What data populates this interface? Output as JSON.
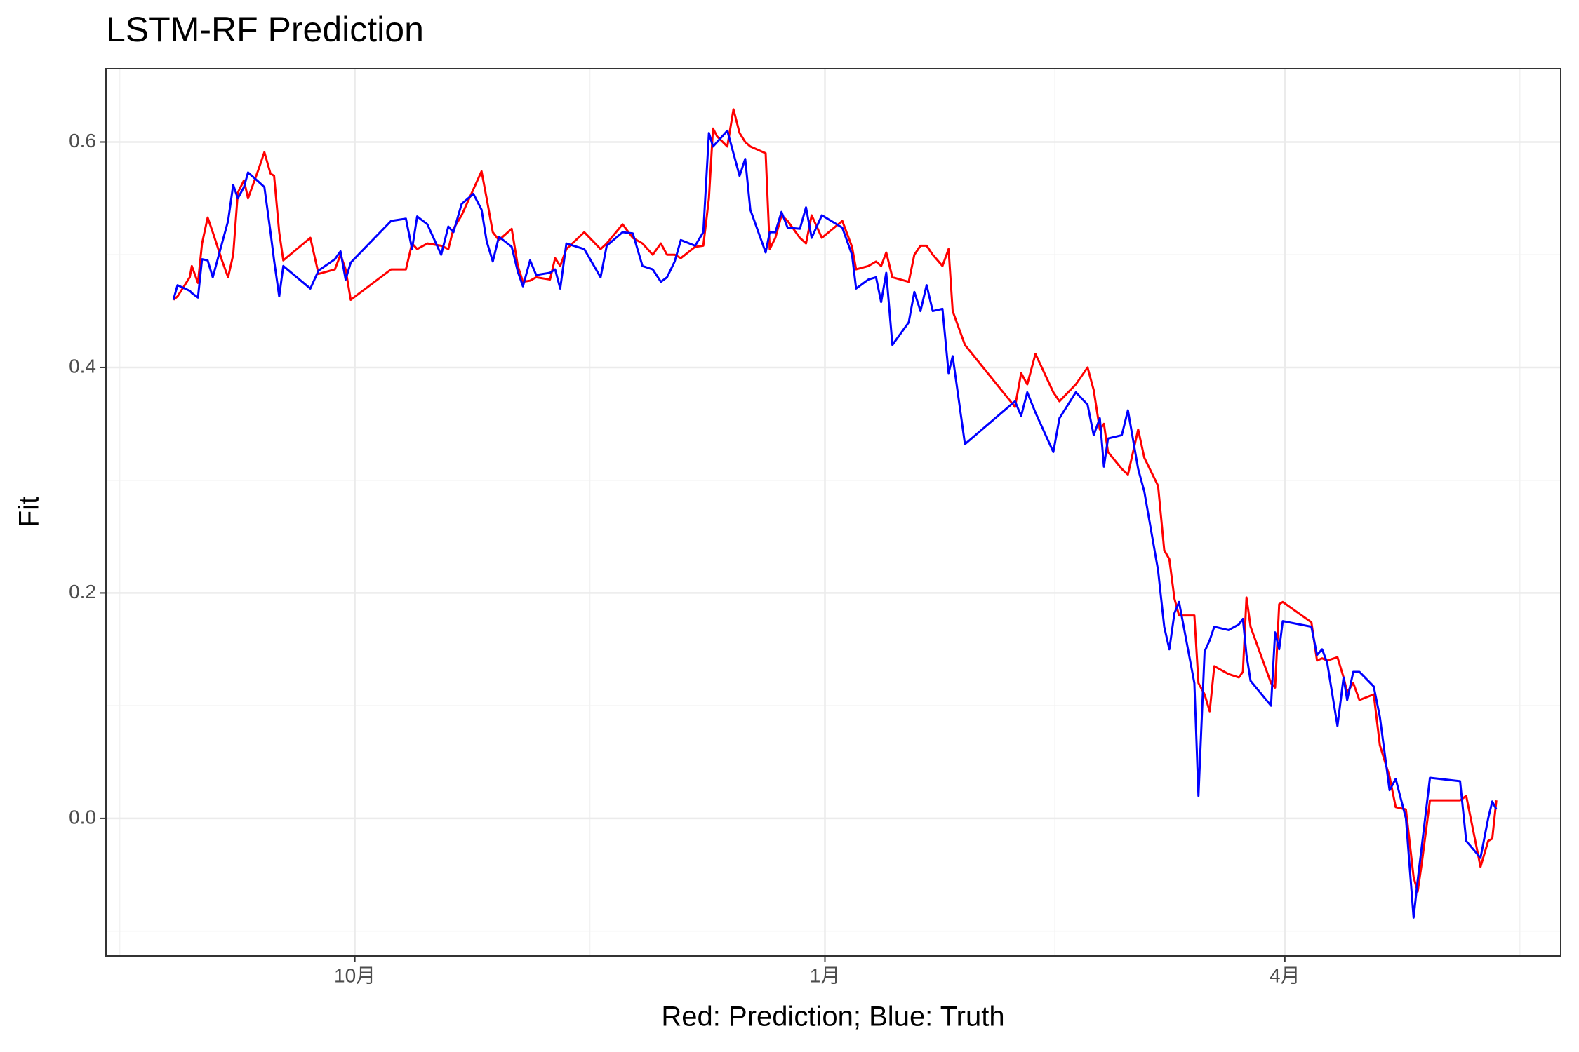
{
  "chart_data": {
    "type": "line",
    "title": "LSTM-RF Prediction",
    "x_label": "Red: Prediction; Blue: Truth",
    "y_label": "Fit",
    "grid": true,
    "xlim": [
      -48.7,
      236
    ],
    "xticks": [
      {
        "value": 0,
        "label": "10月"
      },
      {
        "value": 92,
        "label": "1月"
      },
      {
        "value": 182,
        "label": "4月"
      }
    ],
    "ylim": [
      -0.122,
      0.665
    ],
    "yticks": [
      {
        "value": 0,
        "label": "0.0"
      },
      0.2,
      0.4,
      0.6
    ],
    "x": [
      -35.5,
      -34.7,
      -32.3,
      -31.9,
      -30.7,
      -29.9,
      -28.8,
      -27.8,
      -26.0,
      -24.8,
      -23.8,
      -22.9,
      -21.7,
      -20.9,
      -18.9,
      -17.7,
      -16.5,
      -15.8,
      -14.8,
      -14.0,
      -8.7,
      -7.1,
      -3.9,
      -2.8,
      -1.8,
      -0.8,
      7.1,
      10.0,
      11.2,
      12.2,
      14.2,
      16.9,
      18.3,
      19.3,
      20.9,
      23.2,
      24.8,
      25.8,
      27.0,
      28.2,
      30.7,
      31.9,
      32.9,
      34.3,
      35.5,
      38.2,
      39.2,
      40.2,
      41.4,
      44.9,
      48.1,
      49.3,
      52.4,
      54.4,
      56.3,
      58.3,
      59.9,
      61.1,
      62.6,
      63.8,
      66.6,
      68.2,
      69.3,
      70.1,
      70.9,
      72.9,
      74.1,
      75.3,
      76.4,
      77.4,
      80.4,
      81.2,
      82.3,
      83.5,
      84.7,
      87.1,
      88.3,
      89.4,
      91.4,
      95.4,
      97.3,
      98.1,
      100.5,
      102.0,
      103.0,
      104.0,
      105.2,
      108.4,
      109.5,
      110.7,
      111.9,
      113.1,
      115.0,
      116.2,
      117.0,
      119.4,
      129.2,
      130.4,
      131.6,
      133.2,
      136.7,
      137.9,
      141.1,
      143.4,
      144.6,
      145.8,
      146.6,
      147.4,
      150.1,
      151.3,
      153.3,
      154.5,
      157.2,
      158.4,
      159.4,
      160.4,
      161.3,
      164.3,
      165.1,
      166.3,
      167.3,
      168.2,
      171.0,
      173.0,
      173.8,
      174.5,
      175.3,
      179.3,
      180.1,
      180.9,
      181.6,
      187.2,
      188.3,
      189.3,
      190.3,
      192.3,
      193.5,
      194.2,
      195.4,
      196.6,
      199.4,
      200.6,
      202.5,
      203.7,
      205.7,
      207.2,
      208.0,
      208.8,
      210.4,
      216.3,
      217.5,
      220.3,
      221.8,
      222.6,
      223.4
    ],
    "series": [
      {
        "color": "#ff0000",
        "values": [
          0.46,
          0.463,
          0.48,
          0.49,
          0.475,
          0.51,
          0.533,
          0.52,
          0.495,
          0.48,
          0.5,
          0.555,
          0.566,
          0.55,
          0.575,
          0.591,
          0.572,
          0.57,
          0.52,
          0.495,
          0.515,
          0.483,
          0.487,
          0.5,
          0.487,
          0.46,
          0.487,
          0.487,
          0.51,
          0.505,
          0.51,
          0.508,
          0.505,
          0.523,
          0.535,
          0.558,
          0.574,
          0.55,
          0.52,
          0.513,
          0.523,
          0.49,
          0.476,
          0.477,
          0.48,
          0.478,
          0.497,
          0.49,
          0.505,
          0.52,
          0.505,
          0.51,
          0.527,
          0.515,
          0.51,
          0.5,
          0.51,
          0.5,
          0.5,
          0.497,
          0.507,
          0.508,
          0.55,
          0.612,
          0.605,
          0.596,
          0.629,
          0.608,
          0.6,
          0.596,
          0.59,
          0.505,
          0.515,
          0.535,
          0.53,
          0.515,
          0.51,
          0.535,
          0.515,
          0.53,
          0.507,
          0.487,
          0.49,
          0.494,
          0.49,
          0.502,
          0.48,
          0.476,
          0.5,
          0.508,
          0.508,
          0.5,
          0.49,
          0.505,
          0.45,
          0.42,
          0.365,
          0.395,
          0.385,
          0.412,
          0.378,
          0.37,
          0.385,
          0.4,
          0.38,
          0.345,
          0.35,
          0.325,
          0.31,
          0.305,
          0.345,
          0.32,
          0.295,
          0.238,
          0.23,
          0.195,
          0.18,
          0.18,
          0.12,
          0.11,
          0.095,
          0.135,
          0.128,
          0.125,
          0.13,
          0.196,
          0.17,
          0.12,
          0.116,
          0.19,
          0.192,
          0.174,
          0.14,
          0.142,
          0.14,
          0.143,
          0.125,
          0.112,
          0.12,
          0.105,
          0.11,
          0.065,
          0.037,
          0.01,
          0.008,
          -0.052,
          -0.065,
          -0.04,
          0.016,
          0.016,
          0.02,
          -0.043,
          -0.02,
          -0.018,
          0.016
        ]
      },
      {
        "color": "#0000ff",
        "values": [
          0.46,
          0.473,
          0.468,
          0.466,
          0.462,
          0.496,
          0.495,
          0.48,
          0.51,
          0.53,
          0.562,
          0.55,
          0.56,
          0.573,
          0.565,
          0.56,
          0.52,
          0.495,
          0.463,
          0.49,
          0.47,
          0.486,
          0.496,
          0.503,
          0.478,
          0.493,
          0.53,
          0.532,
          0.505,
          0.534,
          0.527,
          0.5,
          0.525,
          0.52,
          0.545,
          0.554,
          0.54,
          0.512,
          0.494,
          0.516,
          0.507,
          0.485,
          0.472,
          0.495,
          0.482,
          0.484,
          0.487,
          0.47,
          0.51,
          0.505,
          0.48,
          0.508,
          0.52,
          0.519,
          0.49,
          0.487,
          0.476,
          0.48,
          0.494,
          0.513,
          0.508,
          0.52,
          0.608,
          0.596,
          0.6,
          0.61,
          0.59,
          0.57,
          0.585,
          0.54,
          0.502,
          0.52,
          0.52,
          0.538,
          0.524,
          0.523,
          0.542,
          0.515,
          0.535,
          0.524,
          0.5,
          0.47,
          0.478,
          0.48,
          0.458,
          0.484,
          0.42,
          0.44,
          0.467,
          0.45,
          0.473,
          0.45,
          0.452,
          0.395,
          0.41,
          0.332,
          0.37,
          0.357,
          0.378,
          0.36,
          0.325,
          0.355,
          0.378,
          0.367,
          0.34,
          0.355,
          0.312,
          0.337,
          0.34,
          0.362,
          0.31,
          0.29,
          0.22,
          0.17,
          0.15,
          0.182,
          0.192,
          0.12,
          0.02,
          0.148,
          0.158,
          0.17,
          0.167,
          0.172,
          0.177,
          0.145,
          0.122,
          0.1,
          0.165,
          0.15,
          0.175,
          0.17,
          0.145,
          0.15,
          0.138,
          0.082,
          0.125,
          0.105,
          0.13,
          0.13,
          0.117,
          0.09,
          0.025,
          0.035,
          0.0,
          -0.088,
          -0.055,
          -0.025,
          0.036,
          0.033,
          -0.02,
          -0.035,
          0.0,
          0.015,
          0.008
        ]
      }
    ]
  }
}
